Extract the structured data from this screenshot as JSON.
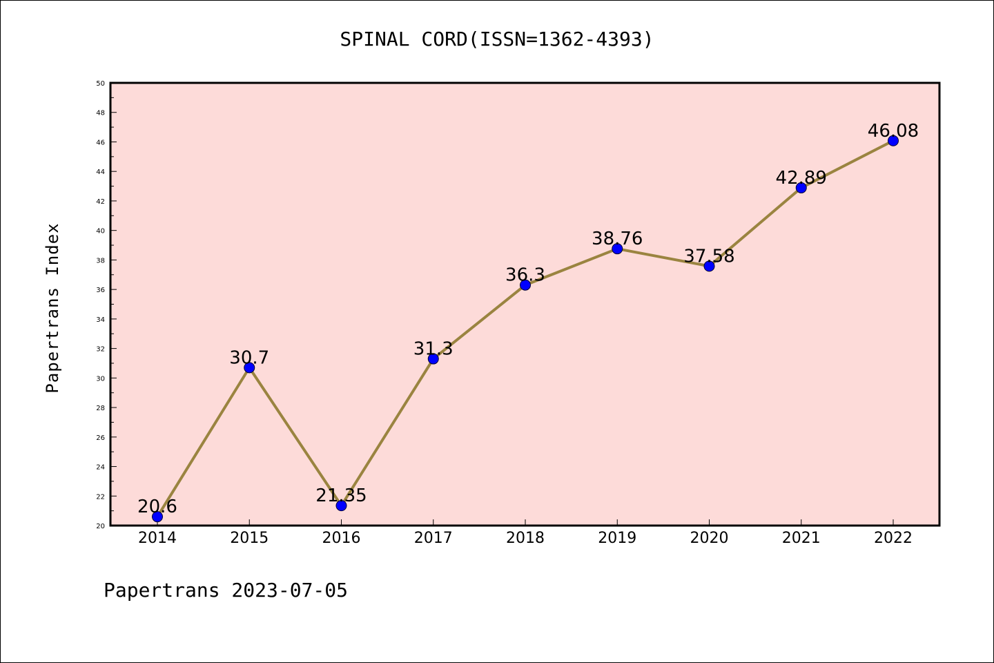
{
  "footer": "Papertrans 2023-07-05",
  "colors": {
    "plot_background": "#fddbd9",
    "line": "#9a8440",
    "marker": "#0000ff"
  },
  "chart_data": {
    "type": "line",
    "title": "SPINAL CORD(ISSN=1362-4393)",
    "xlabel": "",
    "ylabel": "Papertrans Index",
    "categories": [
      "2014",
      "2015",
      "2016",
      "2017",
      "2018",
      "2019",
      "2020",
      "2021",
      "2022"
    ],
    "values": [
      20.6,
      30.7,
      21.35,
      31.3,
      36.3,
      38.76,
      37.58,
      42.89,
      46.08
    ],
    "data_labels": [
      "20.6",
      "30.7",
      "21.35",
      "31.3",
      "36.3",
      "38.76",
      "37.58",
      "42.89",
      "46.08"
    ],
    "ylim": [
      20,
      50
    ],
    "yticks": [
      "20",
      "22",
      "24",
      "26",
      "28",
      "30",
      "32",
      "34",
      "36",
      "38",
      "40",
      "42",
      "44",
      "46",
      "48",
      "50"
    ],
    "grid": false,
    "legend": "none"
  }
}
